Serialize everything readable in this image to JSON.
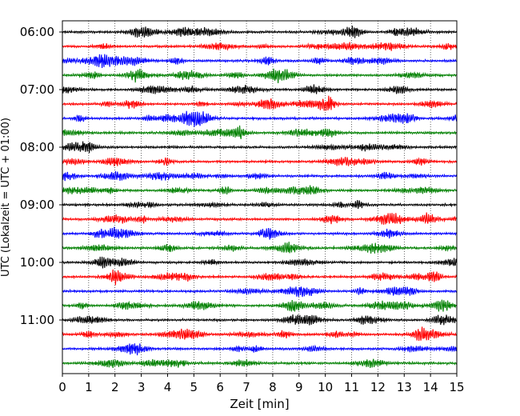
{
  "chart_data": {
    "type": "line",
    "title": "",
    "xlabel": "Zeit  [min]",
    "ylabel": "UTC (Lokalzeit = UTC + 01:00)",
    "xlim": [
      0,
      15
    ],
    "x_ticks": [
      0,
      1,
      2,
      3,
      4,
      5,
      6,
      7,
      8,
      9,
      10,
      11,
      12,
      13,
      14,
      15
    ],
    "y_tick_labels": [
      "06:00",
      "07:00",
      "08:00",
      "09:00",
      "10:00",
      "11:00"
    ],
    "trace_start": "06:00",
    "trace_end": "11:45",
    "trace_interval_minutes": 15,
    "trace_count": 24,
    "trace_colors": [
      "#000000",
      "#ff0000",
      "#0000ff",
      "#008000"
    ],
    "grid": "vertical dotted at each minute",
    "legend": "none"
  }
}
